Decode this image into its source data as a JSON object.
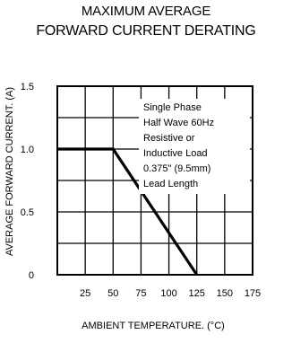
{
  "chart_data": {
    "type": "line",
    "title_lines": [
      "MAXIMUM AVERAGE",
      "FORWARD CURRENT DERATING"
    ],
    "xlabel": "AMBIENT TEMPERATURE. (°C)",
    "ylabel": "AVERAGE FORWARD CURRENT. (A)",
    "xlim": [
      0,
      175
    ],
    "ylim": [
      0,
      1.5
    ],
    "x_ticks": [
      25,
      50,
      75,
      100,
      125,
      150,
      175
    ],
    "x_tick_labels": [
      "25",
      "50",
      "75",
      "100",
      "125",
      "150",
      "175"
    ],
    "y_ticks": [
      0,
      0.5,
      1.0,
      1.5
    ],
    "y_tick_labels": [
      "0",
      "0.5",
      "1.0",
      "1.5"
    ],
    "grid": true,
    "series": [
      {
        "x": [
          0,
          50,
          125
        ],
        "y": [
          1.0,
          1.0,
          0
        ]
      }
    ],
    "annotation_lines": [
      "Single Phase",
      "Half Wave 60Hz",
      "Resistive or",
      "Inductive Load",
      "0.375\" (9.5mm)",
      "Lead Length"
    ]
  }
}
